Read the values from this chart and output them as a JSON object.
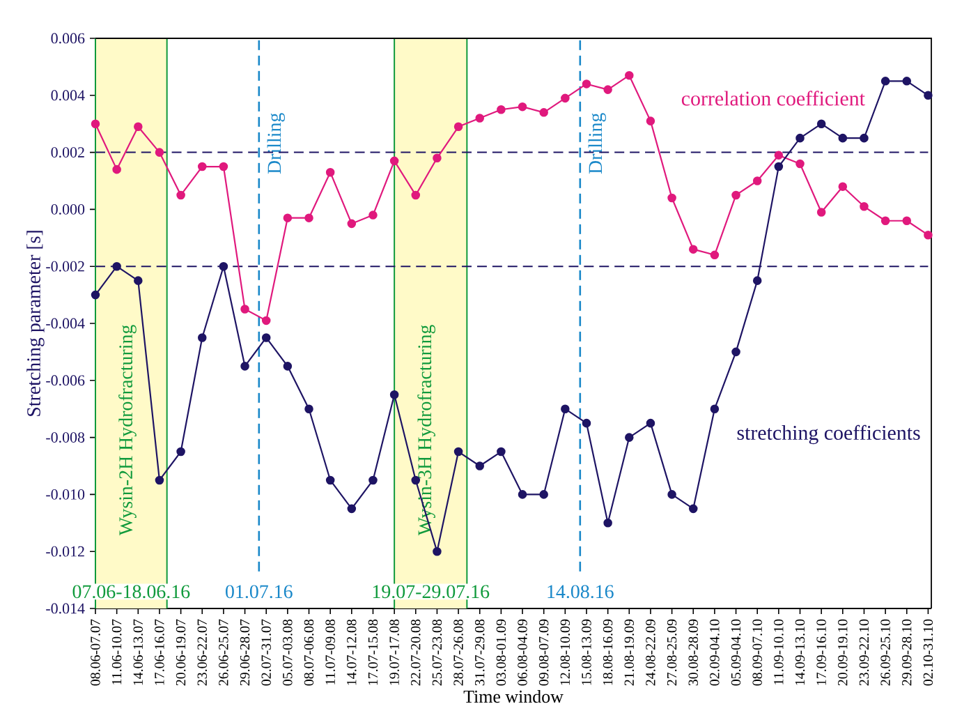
{
  "chart_data": {
    "type": "line",
    "xlabel": "Time window",
    "ylabel": "Stretching parameter [s]",
    "categories": [
      "08.06-07.07",
      "11.06-10.07",
      "14.06-13.07",
      "17.06-16.07",
      "20.06-19.07",
      "23.06-22.07",
      "26.06-25.07",
      "29.06-28.07",
      "02.07-31.07",
      "05.07-03.08",
      "08.07-06.08",
      "11.07-09.08",
      "14.07-12.08",
      "17.07-15.08",
      "19.07-17.08",
      "22.07-20.08",
      "25.07-23.08",
      "28.07-26.08",
      "31.07-29.08",
      "03.08-01.09",
      "06.08-04.09",
      "09.08-07.09",
      "12.08-10.09",
      "15.08-13.09",
      "18.08-16.09",
      "21.08-19.09",
      "24.08-22.09",
      "27.08-25.09",
      "30.08-28.09",
      "02.09-04.10",
      "05.09-04.10",
      "08.09-07.10",
      "11.09-10.10",
      "14.09-13.10",
      "17.09-16.10",
      "20.09-19.10",
      "23.09-22.10",
      "26.09-25.10",
      "29.09-28.10",
      "02.10-31.10"
    ],
    "series": [
      {
        "name": "correlation coefficient",
        "color": "#e0197d",
        "values": [
          0.003,
          0.0014,
          0.0029,
          0.002,
          0.0005,
          0.0015,
          0.0015,
          -0.0035,
          -0.0039,
          -0.0003,
          -0.0003,
          0.0013,
          -0.0005,
          -0.0002,
          0.0017,
          0.0005,
          0.0018,
          0.0029,
          0.0032,
          0.0035,
          0.0036,
          0.0034,
          0.0039,
          0.0044,
          0.0042,
          0.0047,
          0.0031,
          0.0004,
          -0.0014,
          -0.0016,
          0.0005,
          0.001,
          0.0019,
          0.0016,
          -0.0001,
          0.0008,
          0.0001,
          -0.0004,
          -0.0004,
          -0.0009
        ]
      },
      {
        "name": "stretching coefficients",
        "color": "#1e1464",
        "values": [
          -0.003,
          -0.002,
          -0.0025,
          -0.0095,
          -0.0085,
          -0.0045,
          -0.002,
          -0.0055,
          -0.0045,
          -0.0055,
          -0.007,
          -0.0095,
          -0.0105,
          -0.0095,
          -0.0065,
          -0.0095,
          -0.012,
          -0.0085,
          -0.009,
          -0.0085,
          -0.01,
          -0.01,
          -0.007,
          -0.0075,
          -0.011,
          -0.008,
          -0.0075,
          -0.01,
          -0.0105,
          -0.007,
          -0.005,
          -0.0025,
          0.0015,
          0.0025,
          0.003,
          0.0025,
          0.0025,
          0.0045,
          0.0045,
          0.004
        ]
      }
    ],
    "ylim": [
      -0.014,
      0.006
    ],
    "yticks": [
      {
        "value": -0.014,
        "label": "-0.014"
      },
      {
        "value": -0.012,
        "label": "-0.012"
      },
      {
        "value": -0.01,
        "label": "-0.010"
      },
      {
        "value": -0.008,
        "label": "-0.008"
      },
      {
        "value": -0.006,
        "label": "-0.006"
      },
      {
        "value": -0.004,
        "label": "-0.004"
      },
      {
        "value": -0.002,
        "label": "-0.002"
      },
      {
        "value": 0,
        "label": "0.000"
      },
      {
        "value": 0.002,
        "label": "0.002"
      },
      {
        "value": 0.004,
        "label": "0.004"
      },
      {
        "value": 0.006,
        "label": "0.006"
      }
    ],
    "ref_lines": [
      {
        "axis": "y",
        "value": 0.002,
        "color": "#1e1464",
        "line_style": "dashed"
      },
      {
        "axis": "y",
        "value": -0.002,
        "color": "#1e1464",
        "line_style": "dashed"
      }
    ],
    "annotations": [
      "Wysin-2H Hydrofracturing",
      "07.06-18.06.16",
      "Drilling",
      "01.07.16",
      "Wysin-3H Hydrofracturing",
      "19.07-29.07.16",
      "Drilling",
      "14.08.16"
    ],
    "marker": "circle",
    "line_style": "solid"
  }
}
